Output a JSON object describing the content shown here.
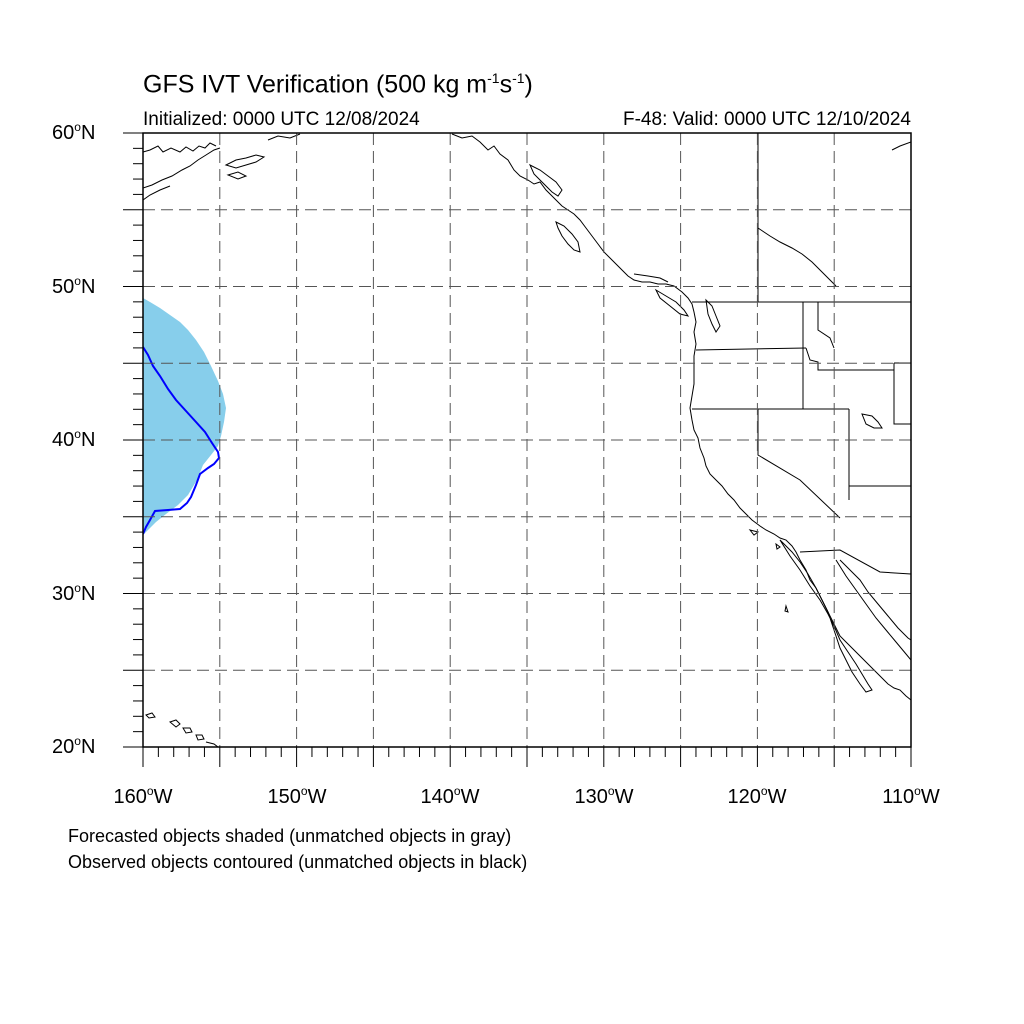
{
  "title": {
    "main": "GFS IVT Verification (500 kg m",
    "sup1": "-1",
    "mid": "s",
    "sup2": "-1",
    "end": ")"
  },
  "subtitle": {
    "initialized": "Initialized: 0000 UTC 12/08/2024",
    "valid": "F-48: Valid: 0000 UTC 12/10/2024"
  },
  "axes": {
    "lat_labels": [
      {
        "num": "60",
        "hemi": "N"
      },
      {
        "num": "50",
        "hemi": "N"
      },
      {
        "num": "40",
        "hemi": "N"
      },
      {
        "num": "30",
        "hemi": "N"
      },
      {
        "num": "20",
        "hemi": "N"
      }
    ],
    "lon_labels": [
      {
        "num": "160",
        "hemi": "W"
      },
      {
        "num": "150",
        "hemi": "W"
      },
      {
        "num": "140",
        "hemi": "W"
      },
      {
        "num": "130",
        "hemi": "W"
      },
      {
        "num": "120",
        "hemi": "W"
      },
      {
        "num": "110",
        "hemi": "W"
      }
    ],
    "degree_symbol": "o",
    "lat_range": [
      20,
      60
    ],
    "lon_range": [
      -160,
      -110
    ],
    "grid": "dashed every 5 degrees"
  },
  "legend": {
    "line1": "Forecasted objects shaded (unmatched objects in gray)",
    "line2": "Observed objects contoured (unmatched objects in black)"
  },
  "colors": {
    "forecast_fill": "#87ceeb",
    "observed_contour": "#0000ff",
    "coastline": "#000000",
    "grid": "#555555"
  },
  "objects": {
    "forecast_object": {
      "type": "shaded",
      "color": "light blue",
      "approx_lat_range": [
        33.7,
        49.3
      ],
      "approx_lon_range": [
        -160,
        -154.7
      ]
    },
    "observed_object": {
      "type": "contour",
      "color": "blue",
      "approx_lat_range": [
        33.8,
        46.1
      ],
      "approx_lon_range": [
        -160,
        -155
      ]
    }
  }
}
